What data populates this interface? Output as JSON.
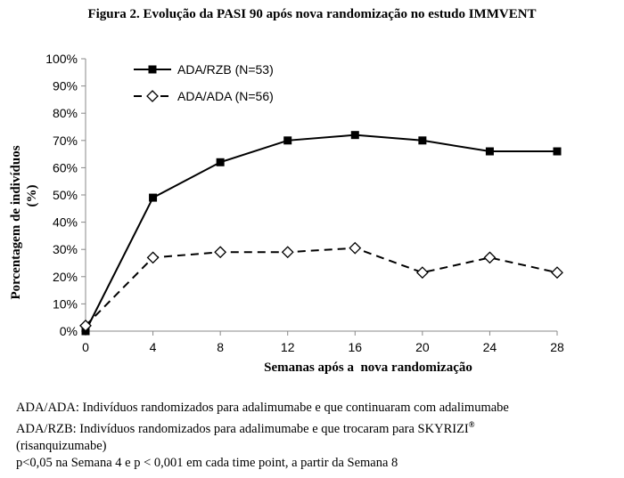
{
  "figure_title": "Figura 2. Evolução da PASI 90 após nova randomização no estudo IMMVENT",
  "chart_data": {
    "type": "line",
    "title": "",
    "xlabel": "Semanas após a  nova randomização",
    "ylabel_line1": "Porcentagem de indivíduos",
    "ylabel_line2": "(%)",
    "x": [
      0,
      4,
      8,
      12,
      16,
      20,
      24,
      28
    ],
    "xticks": [
      "0",
      "4",
      "8",
      "12",
      "16",
      "20",
      "24",
      "28"
    ],
    "xlim": [
      0,
      28
    ],
    "ylim": [
      0,
      100
    ],
    "yticks": [
      "0%",
      "10%",
      "20%",
      "30%",
      "40%",
      "50%",
      "60%",
      "70%",
      "80%",
      "90%",
      "100%"
    ],
    "grid": false,
    "legend_position": "top-left",
    "series": [
      {
        "name": "ADA/RZB (N=53)",
        "values": [
          0,
          49,
          62,
          70,
          72,
          70,
          66,
          66
        ],
        "marker": "filled-square",
        "line_style": "solid",
        "color": "#000000"
      },
      {
        "name": "ADA/ADA (N=56)",
        "values": [
          2,
          27,
          29,
          29,
          30.5,
          21.5,
          27,
          21.5
        ],
        "marker": "open-diamond",
        "line_style": "dashed",
        "color": "#000000"
      }
    ]
  },
  "notes": {
    "line1": "ADA/ADA: Indivíduos randomizados para adalimumabe e que continuaram com adalimumabe",
    "line2_text": "ADA/RZB: Indivíduos randomizados para adalimumabe e que trocaram para SKYRIZI",
    "line2_sup": "®",
    "line3": "(risanquizumabe)",
    "line4": "p<0,05 na Semana 4 e p < 0,001 em cada time point, a partir da  Semana 8"
  }
}
